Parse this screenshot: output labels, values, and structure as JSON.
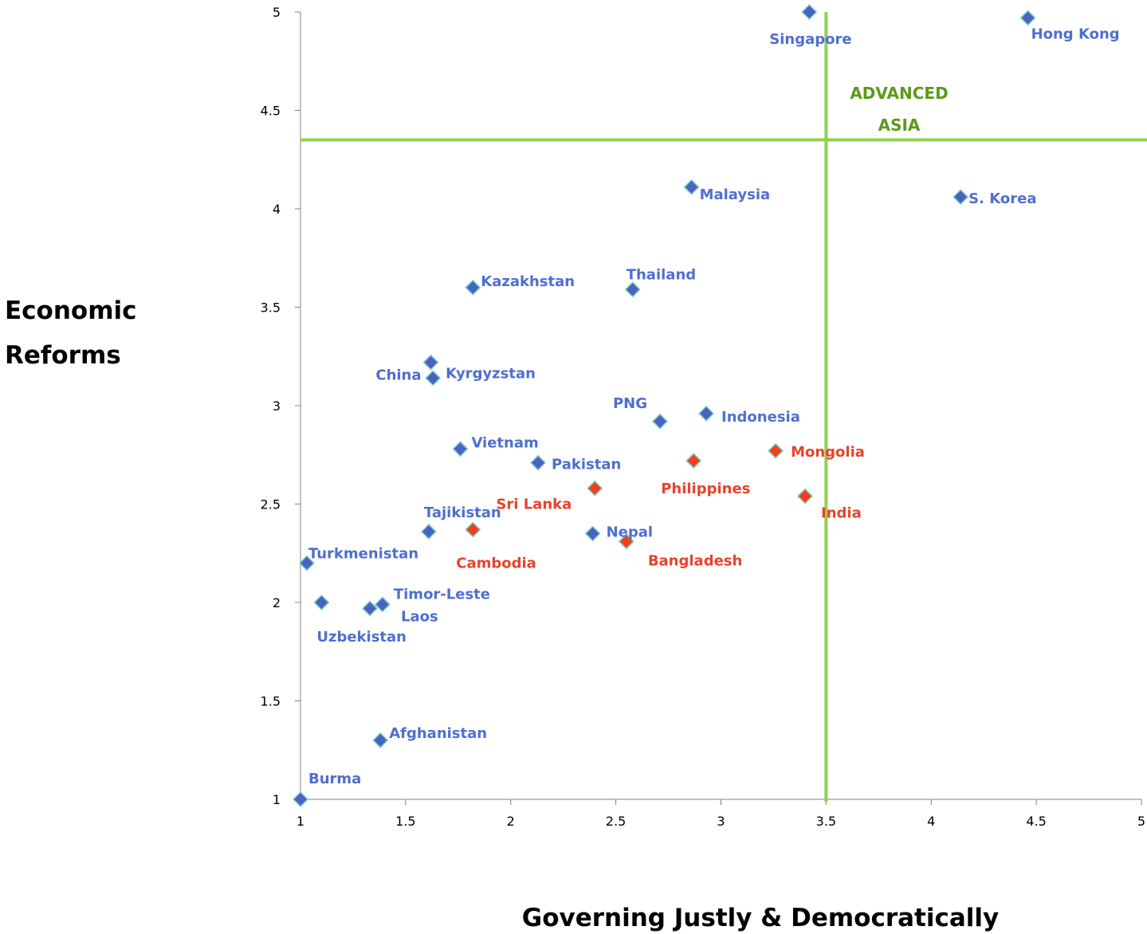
{
  "chart_data": {
    "type": "scatter",
    "title": "",
    "xlabel": "Governing Justly & Democratically",
    "ylabel_lines": [
      "Economic",
      "Reforms"
    ],
    "xlim": [
      1,
      5
    ],
    "ylim": [
      1,
      5
    ],
    "x_ticks": [
      "1",
      "1.5",
      "2",
      "2.5",
      "3",
      "3.5",
      "4",
      "4.5",
      "5"
    ],
    "y_ticks": [
      "1",
      "1.5",
      "2",
      "2.5",
      "3",
      "3.5",
      "4",
      "4.5",
      "5"
    ],
    "grid": false,
    "reference_lines": {
      "x": 3.5,
      "y": 4.35,
      "color": "#92d050"
    },
    "region_label_lines": [
      "ADVANCED",
      "ASIA"
    ],
    "colors": {
      "blue": "#4f6fcf",
      "red": "#e8432a",
      "marker_blue": "#4a62c4",
      "marker_red": "#f04020",
      "marker_edge": "#7fd3c4",
      "region": "#5b9a1a",
      "threshold": "#92d050"
    },
    "points": [
      {
        "name": "Singapore",
        "x": 3.42,
        "y": 5.0,
        "group": "blue"
      },
      {
        "name": "Hong Kong",
        "x": 4.46,
        "y": 4.97,
        "group": "blue"
      },
      {
        "name": "Malaysia",
        "x": 2.86,
        "y": 4.11,
        "group": "blue"
      },
      {
        "name": "S. Korea",
        "x": 4.14,
        "y": 4.06,
        "group": "blue"
      },
      {
        "name": "Kazakhstan",
        "x": 1.82,
        "y": 3.6,
        "group": "blue"
      },
      {
        "name": "Thailand",
        "x": 2.58,
        "y": 3.59,
        "group": "blue"
      },
      {
        "name": "China",
        "x": 1.62,
        "y": 3.22,
        "group": "blue"
      },
      {
        "name": "Kyrgyzstan",
        "x": 1.63,
        "y": 3.14,
        "group": "blue"
      },
      {
        "name": "PNG",
        "x": 2.71,
        "y": 2.92,
        "group": "blue"
      },
      {
        "name": "Indonesia",
        "x": 2.93,
        "y": 2.96,
        "group": "blue"
      },
      {
        "name": "Vietnam",
        "x": 1.76,
        "y": 2.78,
        "group": "blue"
      },
      {
        "name": "Pakistan",
        "x": 2.13,
        "y": 2.71,
        "group": "blue"
      },
      {
        "name": "Mongolia",
        "x": 3.26,
        "y": 2.77,
        "group": "red"
      },
      {
        "name": "Philippines",
        "x": 2.87,
        "y": 2.72,
        "group": "red"
      },
      {
        "name": "Sri Lanka",
        "x": 2.4,
        "y": 2.58,
        "group": "red"
      },
      {
        "name": "India",
        "x": 3.4,
        "y": 2.54,
        "group": "red"
      },
      {
        "name": "Tajikistan",
        "x": 1.61,
        "y": 2.36,
        "group": "blue"
      },
      {
        "name": "Cambodia",
        "x": 1.82,
        "y": 2.37,
        "group": "red"
      },
      {
        "name": "Nepal",
        "x": 2.39,
        "y": 2.35,
        "group": "blue"
      },
      {
        "name": "Bangladesh",
        "x": 2.55,
        "y": 2.31,
        "group": "red"
      },
      {
        "name": "Turkmenistan",
        "x": 1.03,
        "y": 2.2,
        "group": "blue"
      },
      {
        "name": "Timor-Leste",
        "x": 1.39,
        "y": 1.99,
        "group": "blue"
      },
      {
        "name": "Laos",
        "x": 1.33,
        "y": 1.97,
        "group": "blue"
      },
      {
        "name": "Uzbekistan",
        "x": 1.1,
        "y": 2.0,
        "group": "blue"
      },
      {
        "name": "Afghanistan",
        "x": 1.38,
        "y": 1.3,
        "group": "blue"
      },
      {
        "name": "Burma",
        "x": 1.0,
        "y": 1.0,
        "group": "blue"
      }
    ]
  }
}
